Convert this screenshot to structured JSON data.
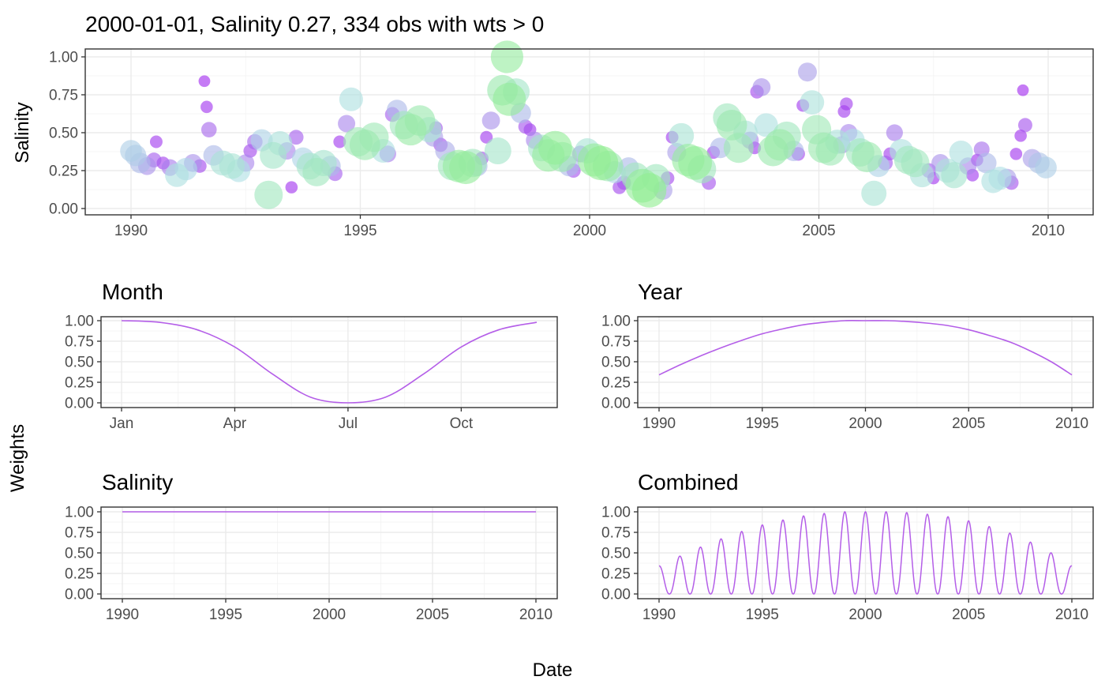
{
  "chart_data": [
    {
      "panel": "salinity-observations",
      "type": "scatter",
      "title": "2000-01-01, Salinity 0.27, 334 obs with wts > 0",
      "xlabel": "",
      "ylabel": "Salinity",
      "xlim": [
        1990,
        2010
      ],
      "ylim": [
        0,
        1
      ],
      "x_ticks": [
        1990,
        1995,
        2000,
        2005,
        2010
      ],
      "x_tick_labels": [
        "1990",
        "1995",
        "2000",
        "2005",
        "2010"
      ],
      "y_ticks": [
        0,
        0.25,
        0.5,
        0.75,
        1
      ],
      "y_tick_labels": [
        "0.00",
        "0.25",
        "0.50",
        "0.75",
        "1.00"
      ],
      "grid": true,
      "point_size_and_color": "weight",
      "points": [
        {
          "x": 1990.0,
          "y": 0.38,
          "w": 0.34
        },
        {
          "x": 1990.1,
          "y": 0.35,
          "w": 0.33
        },
        {
          "x": 1990.2,
          "y": 0.3,
          "w": 0.3
        },
        {
          "x": 1990.35,
          "y": 0.28,
          "w": 0.22
        },
        {
          "x": 1990.5,
          "y": 0.32,
          "w": 0.12
        },
        {
          "x": 1990.55,
          "y": 0.44,
          "w": 0.05
        },
        {
          "x": 1990.7,
          "y": 0.3,
          "w": 0.06
        },
        {
          "x": 1990.85,
          "y": 0.27,
          "w": 0.18
        },
        {
          "x": 1991.0,
          "y": 0.22,
          "w": 0.4
        },
        {
          "x": 1991.2,
          "y": 0.26,
          "w": 0.36
        },
        {
          "x": 1991.35,
          "y": 0.3,
          "w": 0.22
        },
        {
          "x": 1991.5,
          "y": 0.28,
          "w": 0.08
        },
        {
          "x": 1991.6,
          "y": 0.84,
          "w": 0.02
        },
        {
          "x": 1991.65,
          "y": 0.67,
          "w": 0.04
        },
        {
          "x": 1991.7,
          "y": 0.52,
          "w": 0.14
        },
        {
          "x": 1991.8,
          "y": 0.35,
          "w": 0.3
        },
        {
          "x": 1992.0,
          "y": 0.3,
          "w": 0.44
        },
        {
          "x": 1992.2,
          "y": 0.28,
          "w": 0.46
        },
        {
          "x": 1992.35,
          "y": 0.25,
          "w": 0.38
        },
        {
          "x": 1992.5,
          "y": 0.3,
          "w": 0.2
        },
        {
          "x": 1992.6,
          "y": 0.38,
          "w": 0.08
        },
        {
          "x": 1992.7,
          "y": 0.44,
          "w": 0.14
        },
        {
          "x": 1992.85,
          "y": 0.45,
          "w": 0.35
        },
        {
          "x": 1993.0,
          "y": 0.09,
          "w": 0.55
        },
        {
          "x": 1993.1,
          "y": 0.35,
          "w": 0.5
        },
        {
          "x": 1993.25,
          "y": 0.43,
          "w": 0.42
        },
        {
          "x": 1993.4,
          "y": 0.38,
          "w": 0.2
        },
        {
          "x": 1993.5,
          "y": 0.14,
          "w": 0.04
        },
        {
          "x": 1993.6,
          "y": 0.47,
          "w": 0.12
        },
        {
          "x": 1993.75,
          "y": 0.33,
          "w": 0.35
        },
        {
          "x": 1993.9,
          "y": 0.28,
          "w": 0.5
        },
        {
          "x": 1994.05,
          "y": 0.24,
          "w": 0.55
        },
        {
          "x": 1994.2,
          "y": 0.3,
          "w": 0.48
        },
        {
          "x": 1994.35,
          "y": 0.28,
          "w": 0.3
        },
        {
          "x": 1994.45,
          "y": 0.23,
          "w": 0.12
        },
        {
          "x": 1994.55,
          "y": 0.44,
          "w": 0.05
        },
        {
          "x": 1994.7,
          "y": 0.56,
          "w": 0.2
        },
        {
          "x": 1994.8,
          "y": 0.72,
          "w": 0.4
        },
        {
          "x": 1994.95,
          "y": 0.44,
          "w": 0.58
        },
        {
          "x": 1995.1,
          "y": 0.42,
          "w": 0.62
        },
        {
          "x": 1995.3,
          "y": 0.47,
          "w": 0.58
        },
        {
          "x": 1995.5,
          "y": 0.38,
          "w": 0.4
        },
        {
          "x": 1995.6,
          "y": 0.36,
          "w": 0.18
        },
        {
          "x": 1995.7,
          "y": 0.62,
          "w": 0.12
        },
        {
          "x": 1995.8,
          "y": 0.65,
          "w": 0.3
        },
        {
          "x": 1995.95,
          "y": 0.55,
          "w": 0.55
        },
        {
          "x": 1996.1,
          "y": 0.52,
          "w": 0.65
        },
        {
          "x": 1996.3,
          "y": 0.58,
          "w": 0.62
        },
        {
          "x": 1996.5,
          "y": 0.52,
          "w": 0.45
        },
        {
          "x": 1996.6,
          "y": 0.47,
          "w": 0.25
        },
        {
          "x": 1996.65,
          "y": 0.53,
          "w": 0.08
        },
        {
          "x": 1996.75,
          "y": 0.42,
          "w": 0.1
        },
        {
          "x": 1996.85,
          "y": 0.38,
          "w": 0.28
        },
        {
          "x": 1997.0,
          "y": 0.28,
          "w": 0.55
        },
        {
          "x": 1997.15,
          "y": 0.28,
          "w": 0.68
        },
        {
          "x": 1997.3,
          "y": 0.27,
          "w": 0.7
        },
        {
          "x": 1997.45,
          "y": 0.3,
          "w": 0.55
        },
        {
          "x": 1997.55,
          "y": 0.28,
          "w": 0.3
        },
        {
          "x": 1997.65,
          "y": 0.33,
          "w": 0.08
        },
        {
          "x": 1997.75,
          "y": 0.47,
          "w": 0.05
        },
        {
          "x": 1997.85,
          "y": 0.58,
          "w": 0.22
        },
        {
          "x": 1998.0,
          "y": 0.38,
          "w": 0.5
        },
        {
          "x": 1998.1,
          "y": 0.78,
          "w": 0.62
        },
        {
          "x": 1998.2,
          "y": 1.0,
          "w": 0.68
        },
        {
          "x": 1998.25,
          "y": 0.72,
          "w": 0.7
        },
        {
          "x": 1998.4,
          "y": 0.77,
          "w": 0.5
        },
        {
          "x": 1998.5,
          "y": 0.63,
          "w": 0.3
        },
        {
          "x": 1998.6,
          "y": 0.54,
          "w": 0.1
        },
        {
          "x": 1998.7,
          "y": 0.52,
          "w": 0.05
        },
        {
          "x": 1998.8,
          "y": 0.45,
          "w": 0.2
        },
        {
          "x": 1998.95,
          "y": 0.4,
          "w": 0.5
        },
        {
          "x": 1999.1,
          "y": 0.35,
          "w": 0.68
        },
        {
          "x": 1999.25,
          "y": 0.4,
          "w": 0.72
        },
        {
          "x": 1999.4,
          "y": 0.34,
          "w": 0.6
        },
        {
          "x": 1999.55,
          "y": 0.28,
          "w": 0.3
        },
        {
          "x": 1999.65,
          "y": 0.25,
          "w": 0.1
        },
        {
          "x": 1999.8,
          "y": 0.36,
          "w": 0.18
        },
        {
          "x": 1999.95,
          "y": 0.38,
          "w": 0.45
        },
        {
          "x": 2000.1,
          "y": 0.32,
          "w": 0.7
        },
        {
          "x": 2000.25,
          "y": 0.3,
          "w": 0.74
        },
        {
          "x": 2000.4,
          "y": 0.28,
          "w": 0.62
        },
        {
          "x": 2000.55,
          "y": 0.24,
          "w": 0.35
        },
        {
          "x": 2000.65,
          "y": 0.14,
          "w": 0.08
        },
        {
          "x": 2000.75,
          "y": 0.17,
          "w": 0.1
        },
        {
          "x": 2000.85,
          "y": 0.27,
          "w": 0.3
        },
        {
          "x": 2001.0,
          "y": 0.21,
          "w": 0.55
        },
        {
          "x": 2001.15,
          "y": 0.15,
          "w": 0.72
        },
        {
          "x": 2001.3,
          "y": 0.12,
          "w": 0.74
        },
        {
          "x": 2001.45,
          "y": 0.2,
          "w": 0.55
        },
        {
          "x": 2001.6,
          "y": 0.12,
          "w": 0.25
        },
        {
          "x": 2001.7,
          "y": 0.2,
          "w": 0.08
        },
        {
          "x": 2001.8,
          "y": 0.47,
          "w": 0.05
        },
        {
          "x": 2001.9,
          "y": 0.37,
          "w": 0.25
        },
        {
          "x": 2002.0,
          "y": 0.48,
          "w": 0.45
        },
        {
          "x": 2002.15,
          "y": 0.32,
          "w": 0.68
        },
        {
          "x": 2002.3,
          "y": 0.3,
          "w": 0.72
        },
        {
          "x": 2002.45,
          "y": 0.26,
          "w": 0.55
        },
        {
          "x": 2002.6,
          "y": 0.17,
          "w": 0.1
        },
        {
          "x": 2002.7,
          "y": 0.37,
          "w": 0.06
        },
        {
          "x": 2002.85,
          "y": 0.4,
          "w": 0.3
        },
        {
          "x": 2003.0,
          "y": 0.6,
          "w": 0.55
        },
        {
          "x": 2003.1,
          "y": 0.55,
          "w": 0.62
        },
        {
          "x": 2003.25,
          "y": 0.4,
          "w": 0.6
        },
        {
          "x": 2003.4,
          "y": 0.5,
          "w": 0.42
        },
        {
          "x": 2003.5,
          "y": 0.45,
          "w": 0.2
        },
        {
          "x": 2003.6,
          "y": 0.4,
          "w": 0.05
        },
        {
          "x": 2003.65,
          "y": 0.77,
          "w": 0.08
        },
        {
          "x": 2003.75,
          "y": 0.8,
          "w": 0.22
        },
        {
          "x": 2003.85,
          "y": 0.55,
          "w": 0.4
        },
        {
          "x": 2004.0,
          "y": 0.38,
          "w": 0.62
        },
        {
          "x": 2004.15,
          "y": 0.42,
          "w": 0.65
        },
        {
          "x": 2004.3,
          "y": 0.48,
          "w": 0.55
        },
        {
          "x": 2004.45,
          "y": 0.38,
          "w": 0.3
        },
        {
          "x": 2004.55,
          "y": 0.36,
          "w": 0.08
        },
        {
          "x": 2004.65,
          "y": 0.68,
          "w": 0.05
        },
        {
          "x": 2004.75,
          "y": 0.9,
          "w": 0.25
        },
        {
          "x": 2004.85,
          "y": 0.7,
          "w": 0.42
        },
        {
          "x": 2004.95,
          "y": 0.52,
          "w": 0.58
        },
        {
          "x": 2005.1,
          "y": 0.4,
          "w": 0.62
        },
        {
          "x": 2005.25,
          "y": 0.38,
          "w": 0.58
        },
        {
          "x": 2005.4,
          "y": 0.44,
          "w": 0.42
        },
        {
          "x": 2005.5,
          "y": 0.42,
          "w": 0.2
        },
        {
          "x": 2005.55,
          "y": 0.64,
          "w": 0.05
        },
        {
          "x": 2005.6,
          "y": 0.69,
          "w": 0.06
        },
        {
          "x": 2005.65,
          "y": 0.5,
          "w": 0.2
        },
        {
          "x": 2005.75,
          "y": 0.45,
          "w": 0.38
        },
        {
          "x": 2005.9,
          "y": 0.37,
          "w": 0.55
        },
        {
          "x": 2006.05,
          "y": 0.34,
          "w": 0.62
        },
        {
          "x": 2006.2,
          "y": 0.1,
          "w": 0.45
        },
        {
          "x": 2006.3,
          "y": 0.28,
          "w": 0.35
        },
        {
          "x": 2006.45,
          "y": 0.3,
          "w": 0.12
        },
        {
          "x": 2006.55,
          "y": 0.36,
          "w": 0.06
        },
        {
          "x": 2006.65,
          "y": 0.5,
          "w": 0.18
        },
        {
          "x": 2006.8,
          "y": 0.38,
          "w": 0.4
        },
        {
          "x": 2006.95,
          "y": 0.32,
          "w": 0.55
        },
        {
          "x": 2007.1,
          "y": 0.3,
          "w": 0.55
        },
        {
          "x": 2007.25,
          "y": 0.22,
          "w": 0.42
        },
        {
          "x": 2007.4,
          "y": 0.25,
          "w": 0.12
        },
        {
          "x": 2007.5,
          "y": 0.2,
          "w": 0.04
        },
        {
          "x": 2007.65,
          "y": 0.3,
          "w": 0.22
        },
        {
          "x": 2007.8,
          "y": 0.25,
          "w": 0.42
        },
        {
          "x": 2007.95,
          "y": 0.22,
          "w": 0.48
        },
        {
          "x": 2008.1,
          "y": 0.37,
          "w": 0.4
        },
        {
          "x": 2008.25,
          "y": 0.28,
          "w": 0.2
        },
        {
          "x": 2008.35,
          "y": 0.22,
          "w": 0.05
        },
        {
          "x": 2008.45,
          "y": 0.32,
          "w": 0.04
        },
        {
          "x": 2008.55,
          "y": 0.39,
          "w": 0.15
        },
        {
          "x": 2008.65,
          "y": 0.3,
          "w": 0.3
        },
        {
          "x": 2008.8,
          "y": 0.18,
          "w": 0.4
        },
        {
          "x": 2008.95,
          "y": 0.2,
          "w": 0.38
        },
        {
          "x": 2009.1,
          "y": 0.2,
          "w": 0.25
        },
        {
          "x": 2009.2,
          "y": 0.17,
          "w": 0.1
        },
        {
          "x": 2009.3,
          "y": 0.36,
          "w": 0.04
        },
        {
          "x": 2009.4,
          "y": 0.48,
          "w": 0.04
        },
        {
          "x": 2009.45,
          "y": 0.78,
          "w": 0.02
        },
        {
          "x": 2009.5,
          "y": 0.55,
          "w": 0.1
        },
        {
          "x": 2009.65,
          "y": 0.33,
          "w": 0.25
        },
        {
          "x": 2009.8,
          "y": 0.3,
          "w": 0.32
        },
        {
          "x": 2009.95,
          "y": 0.27,
          "w": 0.34
        }
      ],
      "colors": {
        "low_weight": "#a020f0",
        "mid_weight": "#b0e0e6",
        "high_weight": "#90ee90"
      }
    },
    {
      "panel": "month-weights",
      "type": "line",
      "title": "Month",
      "xlim": [
        1,
        12
      ],
      "ylim": [
        0,
        1
      ],
      "x_ticks": [
        1,
        4,
        7,
        10
      ],
      "x_tick_labels": [
        "Jan",
        "Apr",
        "Jul",
        "Oct"
      ],
      "y_ticks": [
        0,
        0.25,
        0.5,
        0.75,
        1
      ],
      "y_tick_labels": [
        "0.00",
        "0.25",
        "0.50",
        "0.75",
        "1.00"
      ],
      "x": [
        1,
        2,
        3,
        4,
        5,
        6,
        7,
        8,
        9,
        10,
        11,
        12
      ],
      "y": [
        1.0,
        0.98,
        0.89,
        0.68,
        0.35,
        0.07,
        0.0,
        0.07,
        0.35,
        0.68,
        0.89,
        0.98
      ],
      "color": "#b45ee8"
    },
    {
      "panel": "year-weights",
      "type": "line",
      "title": "Year",
      "xlim": [
        1990,
        2010
      ],
      "ylim": [
        0,
        1
      ],
      "x_ticks": [
        1990,
        1995,
        2000,
        2005,
        2010
      ],
      "x_tick_labels": [
        "1990",
        "1995",
        "2000",
        "2005",
        "2010"
      ],
      "y_ticks": [
        0,
        0.25,
        0.5,
        0.75,
        1
      ],
      "y_tick_labels": [
        "0.00",
        "0.25",
        "0.50",
        "0.75",
        "1.00"
      ],
      "x": [
        1990,
        1991,
        1992,
        1993,
        1994,
        1995,
        1996,
        1997,
        1998,
        1999,
        2000,
        2001,
        2002,
        2003,
        2004,
        2005,
        2006,
        2007,
        2008,
        2009,
        2010
      ],
      "y": [
        0.34,
        0.46,
        0.57,
        0.67,
        0.76,
        0.84,
        0.9,
        0.95,
        0.98,
        1.0,
        1.0,
        1.0,
        0.99,
        0.97,
        0.94,
        0.89,
        0.82,
        0.74,
        0.63,
        0.5,
        0.34
      ],
      "color": "#b45ee8"
    },
    {
      "panel": "salinity-weights",
      "type": "line",
      "title": "Salinity",
      "xlim": [
        1990,
        2010
      ],
      "ylim": [
        0,
        1
      ],
      "x_ticks": [
        1990,
        1995,
        2000,
        2005,
        2010
      ],
      "x_tick_labels": [
        "1990",
        "1995",
        "2000",
        "2005",
        "2010"
      ],
      "y_ticks": [
        0,
        0.25,
        0.5,
        0.75,
        1
      ],
      "y_tick_labels": [
        "0.00",
        "0.25",
        "0.50",
        "0.75",
        "1.00"
      ],
      "x": [
        1990,
        2010
      ],
      "y": [
        1.0,
        1.0
      ],
      "color": "#b45ee8"
    },
    {
      "panel": "combined-weights",
      "type": "line",
      "title": "Combined",
      "xlim": [
        1990,
        2010
      ],
      "ylim": [
        0,
        1
      ],
      "x_ticks": [
        1990,
        1995,
        2000,
        2005,
        2010
      ],
      "x_tick_labels": [
        "1990",
        "1995",
        "2000",
        "2005",
        "2010"
      ],
      "y_ticks": [
        0,
        0.25,
        0.5,
        0.75,
        1
      ],
      "y_tick_labels": [
        "0.00",
        "0.25",
        "0.50",
        "0.75",
        "1.00"
      ],
      "description_of_curve": "product of monthly and yearly weights; oscillates yearly between 0 and the year-weight envelope",
      "color": "#b45ee8"
    }
  ],
  "axis_titles": {
    "shared_y": "Weights",
    "shared_x": "Date"
  }
}
